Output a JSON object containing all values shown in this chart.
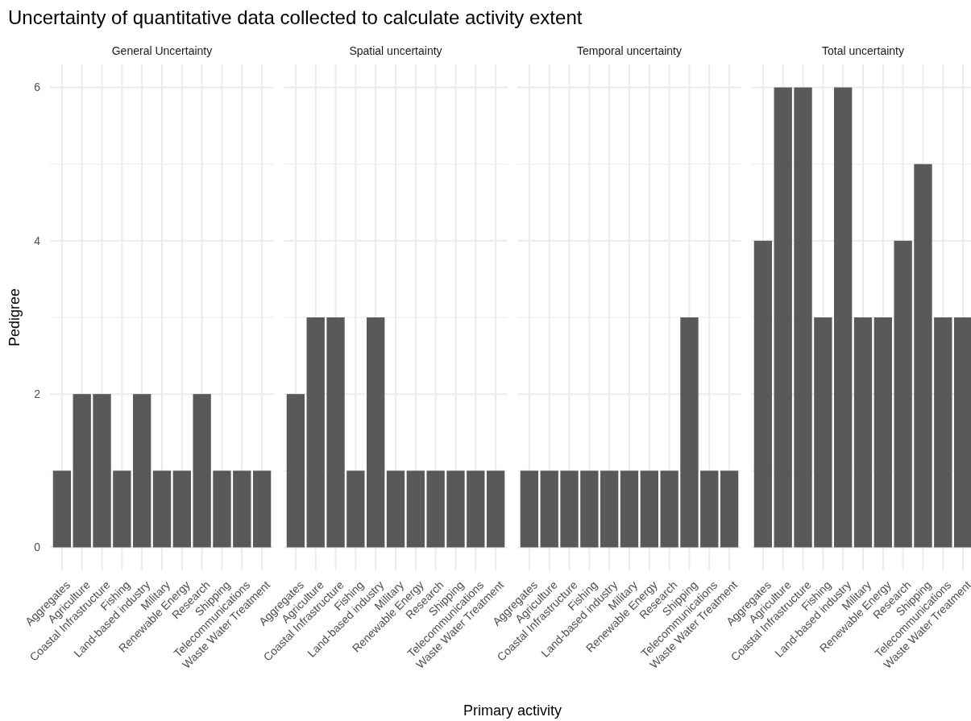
{
  "chart_data": [
    {
      "type": "bar",
      "title": "Uncertainty of quantitative data collected to calculate activity extent",
      "subtitle": "General Uncertainty",
      "ylabel": "Pedigree",
      "categories": [
        "Aggregates",
        "Agriculture",
        "Coastal Infrastructure",
        "Fishing",
        "Land-based industry",
        "Military",
        "Renewable Energy",
        "Research",
        "Shipping",
        "Telecommunications",
        "Waste Water Treatment"
      ],
      "values": [
        1,
        2,
        2,
        1,
        2,
        1,
        1,
        2,
        1,
        1,
        1
      ],
      "color": "#595959",
      "ylim": [
        -0.3,
        6.3
      ],
      "yticks": [
        0,
        {
          "value": 1,
          "label": null
        },
        2,
        {
          "value": 3,
          "label": null
        },
        4,
        {
          "value": 5,
          "label": null
        },
        6
      ],
      "grid": true
    },
    {
      "type": "bar",
      "subtitle": "Spatial uncertainty",
      "xlabel": "Primary activity",
      "categories": [
        "Aggregates",
        "Agriculture",
        "Coastal Infrastructure",
        "Fishing",
        "Land-based industry",
        "Military",
        "Renewable Energy",
        "Research",
        "Shipping",
        "Telecommunications",
        "Waste Water Treatment"
      ],
      "values": [
        2,
        3,
        3,
        1,
        3,
        1,
        1,
        1,
        1,
        1,
        1
      ],
      "color": "#595959",
      "ylim": [
        -0.3,
        6.3
      ],
      "yticks": [
        0,
        {
          "value": 1,
          "label": null
        },
        2,
        {
          "value": 3,
          "label": null
        },
        4,
        {
          "value": 5,
          "label": null
        },
        6
      ],
      "grid": true,
      "tick_labels": "x"
    },
    {
      "type": "bar",
      "subtitle": "Temporal uncertainty",
      "categories": [
        "Aggregates",
        "Agriculture",
        "Coastal Infrastructure",
        "Fishing",
        "Land-based industry",
        "Military",
        "Renewable Energy",
        "Research",
        "Shipping",
        "Telecommunications",
        "Waste Water Treatment"
      ],
      "values": [
        1,
        1,
        1,
        1,
        1,
        1,
        1,
        1,
        3,
        1,
        1
      ],
      "color": "#595959",
      "ylim": [
        -0.3,
        6.3
      ],
      "yticks": [
        0,
        {
          "value": 1,
          "label": null
        },
        2,
        {
          "value": 3,
          "label": null
        },
        4,
        {
          "value": 5,
          "label": null
        },
        6
      ],
      "grid": true,
      "tick_labels": "x"
    },
    {
      "type": "bar",
      "subtitle": "Total uncertainty",
      "categories": [
        "Aggregates",
        "Agriculture",
        "Coastal Infrastructure",
        "Fishing",
        "Land-based industry",
        "Military",
        "Renewable Energy",
        "Research",
        "Shipping",
        "Telecommunications",
        "Waste Water Treatment"
      ],
      "values": [
        4,
        6,
        6,
        3,
        6,
        3,
        3,
        4,
        5,
        3,
        3
      ],
      "color": "#595959",
      "ylim": [
        -0.3,
        6.3
      ],
      "yticks": [
        0,
        {
          "value": 1,
          "label": null
        },
        2,
        {
          "value": 3,
          "label": null
        },
        4,
        {
          "value": 5,
          "label": null
        },
        6
      ],
      "grid": true,
      "tick_labels": "x"
    }
  ]
}
